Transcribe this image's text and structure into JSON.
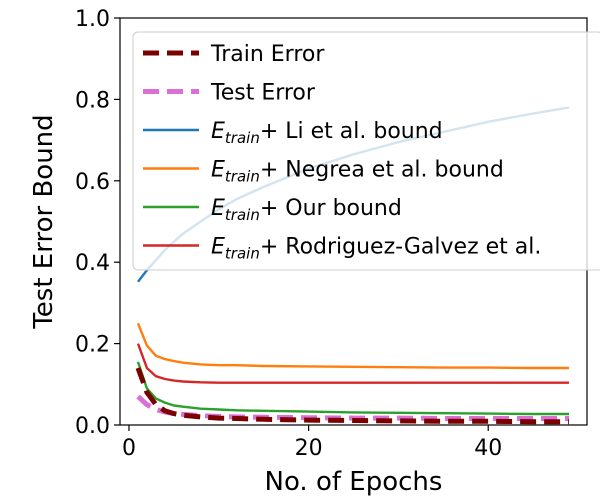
{
  "chart_data": {
    "type": "line",
    "xlabel": "No. of Epochs",
    "ylabel": "Test Error Bound",
    "xlim": [
      -1,
      51
    ],
    "ylim": [
      0.0,
      1.0
    ],
    "xticks": [
      0,
      20,
      40
    ],
    "yticks": [
      0.0,
      0.2,
      0.4,
      0.6,
      0.8,
      1.0
    ],
    "xtick_labels": [
      "0",
      "20",
      "40"
    ],
    "ytick_labels": [
      "0.0",
      "0.2",
      "0.4",
      "0.6",
      "0.8",
      "1.0"
    ],
    "legend_position": "top-right",
    "x": [
      1,
      2,
      3,
      4,
      5,
      6,
      8,
      10,
      12,
      15,
      20,
      25,
      30,
      35,
      40,
      45,
      49
    ],
    "series": [
      {
        "name": "Train Error",
        "color": "#7b0000",
        "style": "dashed",
        "width": "thick",
        "values": [
          0.14,
          0.08,
          0.05,
          0.035,
          0.028,
          0.024,
          0.02,
          0.017,
          0.016,
          0.014,
          0.012,
          0.011,
          0.01,
          0.009,
          0.009,
          0.008,
          0.008
        ]
      },
      {
        "name": "Test Error",
        "color": "#da70d6",
        "style": "dashed",
        "width": "thick",
        "values": [
          0.07,
          0.05,
          0.038,
          0.032,
          0.028,
          0.026,
          0.023,
          0.021,
          0.02,
          0.019,
          0.018,
          0.017,
          0.017,
          0.016,
          0.016,
          0.016,
          0.016
        ]
      },
      {
        "name": "Li et al. bound",
        "prefix": "E",
        "subscript": "train",
        "plus": "+ ",
        "color": "#1f77b4",
        "style": "solid",
        "width": "normal",
        "values": [
          0.352,
          0.38,
          0.405,
          0.43,
          0.45,
          0.47,
          0.5,
          0.53,
          0.555,
          0.585,
          0.63,
          0.665,
          0.695,
          0.72,
          0.745,
          0.765,
          0.78
        ]
      },
      {
        "name": "Negrea et al. bound",
        "prefix": "E",
        "subscript": "train",
        "plus": "+ ",
        "color": "#ff7f0e",
        "style": "solid",
        "width": "normal",
        "values": [
          0.25,
          0.195,
          0.17,
          0.162,
          0.157,
          0.153,
          0.149,
          0.147,
          0.147,
          0.145,
          0.144,
          0.143,
          0.142,
          0.141,
          0.141,
          0.14,
          0.14
        ]
      },
      {
        "name": "Our bound",
        "prefix": "E",
        "subscript": "train",
        "plus": "+ ",
        "color": "#2ca02c",
        "style": "solid",
        "width": "normal",
        "values": [
          0.155,
          0.09,
          0.065,
          0.055,
          0.048,
          0.045,
          0.04,
          0.038,
          0.036,
          0.035,
          0.033,
          0.031,
          0.03,
          0.029,
          0.028,
          0.027,
          0.027
        ]
      },
      {
        "name": "Rodriguez-Galvez et al.",
        "prefix": "E",
        "subscript": "train",
        "plus": "+ ",
        "color": "#d62728",
        "style": "solid",
        "width": "normal",
        "values": [
          0.2,
          0.14,
          0.12,
          0.113,
          0.109,
          0.107,
          0.105,
          0.104,
          0.104,
          0.104,
          0.104,
          0.104,
          0.104,
          0.104,
          0.104,
          0.104,
          0.104
        ]
      }
    ]
  }
}
